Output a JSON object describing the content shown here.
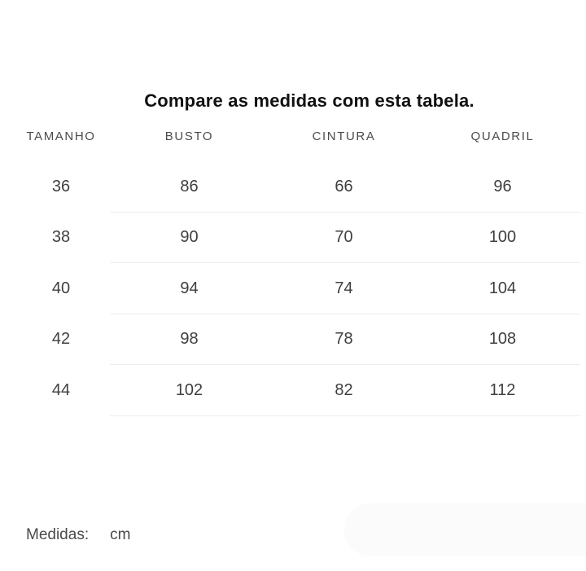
{
  "title": "Compare as medidas com esta tabela.",
  "table": {
    "headers": [
      "TAMANHO",
      "BUSTO",
      "CINTURA",
      "QUADRIL"
    ],
    "rows": [
      [
        "36",
        "86",
        "66",
        "96"
      ],
      [
        "38",
        "90",
        "70",
        "100"
      ],
      [
        "40",
        "94",
        "74",
        "104"
      ],
      [
        "42",
        "98",
        "78",
        "108"
      ],
      [
        "44",
        "102",
        "82",
        "112"
      ]
    ]
  },
  "footer": {
    "label": "Medidas:",
    "unit": "cm"
  },
  "colors": {
    "background": "#ffffff",
    "title_text": "#111111",
    "header_text": "#4b4b4b",
    "cell_text": "#3f3f3f",
    "footer_text": "#4a4a4a",
    "row_separator": "#ededed",
    "faint_pill": "#fbfbfb"
  },
  "chart_data": {
    "type": "table",
    "title": "Compare as medidas com esta tabela.",
    "columns": [
      "TAMANHO",
      "BUSTO",
      "CINTURA",
      "QUADRIL"
    ],
    "rows": [
      [
        36,
        86,
        66,
        96
      ],
      [
        38,
        90,
        70,
        100
      ],
      [
        40,
        94,
        74,
        104
      ],
      [
        42,
        98,
        78,
        108
      ],
      [
        44,
        102,
        82,
        112
      ]
    ],
    "unit": "cm"
  }
}
